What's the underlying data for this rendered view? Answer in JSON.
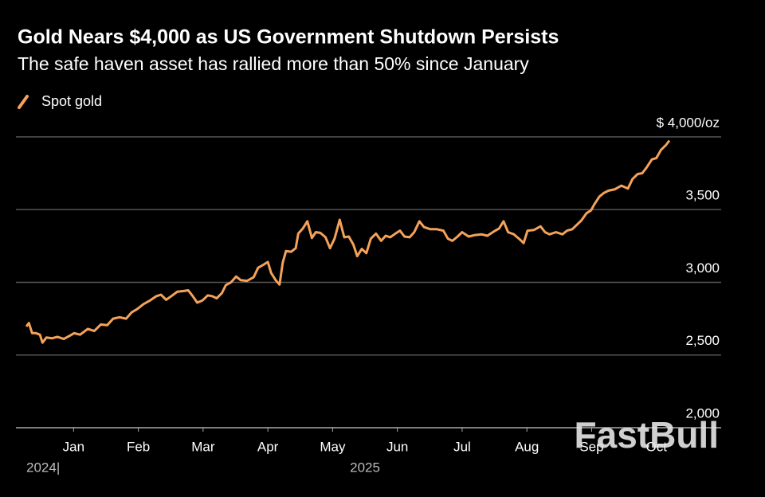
{
  "chart_data": {
    "type": "line",
    "title": "Gold Nears $4,000 as US Government Shutdown Persists",
    "subtitle": "The safe haven asset has rallied more than 50% since January",
    "watermark": "FastBull",
    "year_labels": [
      {
        "value": -0.73,
        "label": "2024|"
      },
      {
        "value": 4.5,
        "label": "2025"
      }
    ],
    "xlim": [
      -0.89,
      10
    ],
    "xticks": [
      {
        "value": 0,
        "label": "Jan"
      },
      {
        "value": 1,
        "label": "Feb"
      },
      {
        "value": 2,
        "label": "Mar"
      },
      {
        "value": 3,
        "label": "Apr"
      },
      {
        "value": 4,
        "label": "May"
      },
      {
        "value": 5,
        "label": "Jun"
      },
      {
        "value": 6,
        "label": "Jul"
      },
      {
        "value": 7,
        "label": "Aug"
      },
      {
        "value": 8,
        "label": "Sep"
      },
      {
        "value": 9,
        "label": "Oct"
      }
    ],
    "ylim": [
      2000,
      4120
    ],
    "yticks": [
      {
        "value": 2000,
        "label": "2,000"
      },
      {
        "value": 2500,
        "label": "2,500"
      },
      {
        "value": 3000,
        "label": "3,000"
      },
      {
        "value": 3500,
        "label": "3,500"
      },
      {
        "value": 4000,
        "label": "$ 4,000/oz"
      }
    ],
    "grid": true,
    "legend": "top-left",
    "x": [
      -0.73,
      -0.69,
      -0.64,
      -0.58,
      -0.52,
      -0.48,
      -0.42,
      -0.33,
      -0.25,
      -0.15,
      -0.05,
      0.01,
      0.1,
      0.22,
      0.32,
      0.42,
      0.52,
      0.61,
      0.71,
      0.81,
      0.9,
      0.98,
      1.08,
      1.18,
      1.28,
      1.35,
      1.43,
      1.51,
      1.6,
      1.7,
      1.77,
      1.84,
      1.91,
      1.99,
      2.07,
      2.14,
      2.21,
      2.29,
      2.35,
      2.43,
      2.51,
      2.58,
      2.68,
      2.78,
      2.85,
      2.93,
      3.0,
      3.05,
      3.12,
      3.18,
      3.23,
      3.28,
      3.36,
      3.43,
      3.47,
      3.54,
      3.61,
      3.68,
      3.74,
      3.81,
      3.89,
      3.96,
      4.03,
      4.11,
      4.18,
      4.25,
      4.32,
      4.38,
      4.45,
      4.52,
      4.59,
      4.67,
      4.75,
      4.82,
      4.89,
      4.97,
      5.04,
      5.11,
      5.19,
      5.26,
      5.34,
      5.41,
      5.51,
      5.61,
      5.71,
      5.78,
      5.85,
      5.93,
      6.0,
      6.1,
      6.2,
      6.3,
      6.39,
      6.49,
      6.57,
      6.64,
      6.71,
      6.8,
      6.89,
      6.95,
      7.01,
      7.11,
      7.21,
      7.28,
      7.35,
      7.45,
      7.55,
      7.62,
      7.7,
      7.77,
      7.84,
      7.92,
      7.99,
      8.04,
      8.12,
      8.19,
      8.26,
      8.36,
      8.46,
      8.56,
      8.63,
      8.71,
      8.78,
      8.85,
      8.93,
      9.0,
      9.07,
      9.15,
      9.2
    ],
    "series": [
      {
        "name": "Spot gold",
        "color": "#f4a259",
        "values": [
          2696,
          2720,
          2650,
          2650,
          2640,
          2585,
          2620,
          2615,
          2625,
          2610,
          2635,
          2650,
          2640,
          2680,
          2665,
          2710,
          2705,
          2750,
          2760,
          2750,
          2795,
          2815,
          2850,
          2875,
          2905,
          2915,
          2880,
          2905,
          2935,
          2940,
          2945,
          2905,
          2860,
          2875,
          2910,
          2905,
          2890,
          2925,
          2980,
          3000,
          3040,
          3015,
          3010,
          3035,
          3100,
          3120,
          3140,
          3065,
          3015,
          2985,
          3135,
          3215,
          3210,
          3235,
          3335,
          3370,
          3420,
          3305,
          3345,
          3340,
          3310,
          3235,
          3300,
          3430,
          3310,
          3315,
          3260,
          3180,
          3230,
          3200,
          3300,
          3335,
          3285,
          3320,
          3310,
          3335,
          3355,
          3315,
          3310,
          3345,
          3420,
          3380,
          3365,
          3365,
          3355,
          3300,
          3285,
          3315,
          3345,
          3315,
          3325,
          3330,
          3320,
          3350,
          3370,
          3420,
          3345,
          3330,
          3295,
          3270,
          3355,
          3360,
          3385,
          3345,
          3330,
          3345,
          3330,
          3355,
          3365,
          3395,
          3425,
          3475,
          3495,
          3535,
          3590,
          3615,
          3630,
          3640,
          3665,
          3645,
          3710,
          3745,
          3750,
          3790,
          3845,
          3855,
          3910,
          3945,
          3975
        ]
      }
    ]
  }
}
